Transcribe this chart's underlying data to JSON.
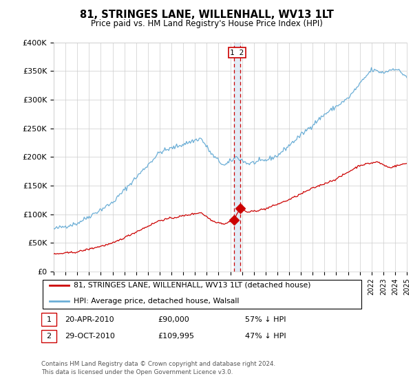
{
  "title": "81, STRINGES LANE, WILLENHALL, WV13 1LT",
  "subtitle": "Price paid vs. HM Land Registry's House Price Index (HPI)",
  "legend_line1": "81, STRINGES LANE, WILLENHALL, WV13 1LT (detached house)",
  "legend_line2": "HPI: Average price, detached house, Walsall",
  "footer": "Contains HM Land Registry data © Crown copyright and database right 2024.\nThis data is licensed under the Open Government Licence v3.0.",
  "transaction1_date": "20-APR-2010",
  "transaction1_price": "£90,000",
  "transaction1_hpi": "57% ↓ HPI",
  "transaction2_date": "29-OCT-2010",
  "transaction2_price": "£109,995",
  "transaction2_hpi": "47% ↓ HPI",
  "yticks": [
    0,
    50000,
    100000,
    150000,
    200000,
    250000,
    300000,
    350000,
    400000
  ],
  "ytick_labels": [
    "£0",
    "£50K",
    "£100K",
    "£150K",
    "£200K",
    "£250K",
    "£300K",
    "£350K",
    "£400K"
  ],
  "hpi_color": "#6baed6",
  "price_color": "#cc0000",
  "marker_color": "#cc0000",
  "vline_color": "#cc0000",
  "vband_color": "#c6dbef",
  "grid_color": "#cccccc",
  "background_color": "#ffffff",
  "transaction1_x_year": 2010.3,
  "transaction2_x_year": 2010.83,
  "transaction1_y": 90000,
  "transaction2_y": 109995,
  "vline1_x": 2010.3,
  "vline2_x": 2010.83,
  "xmin": 1995,
  "xmax": 2025,
  "ymin": 0,
  "ymax": 400000
}
